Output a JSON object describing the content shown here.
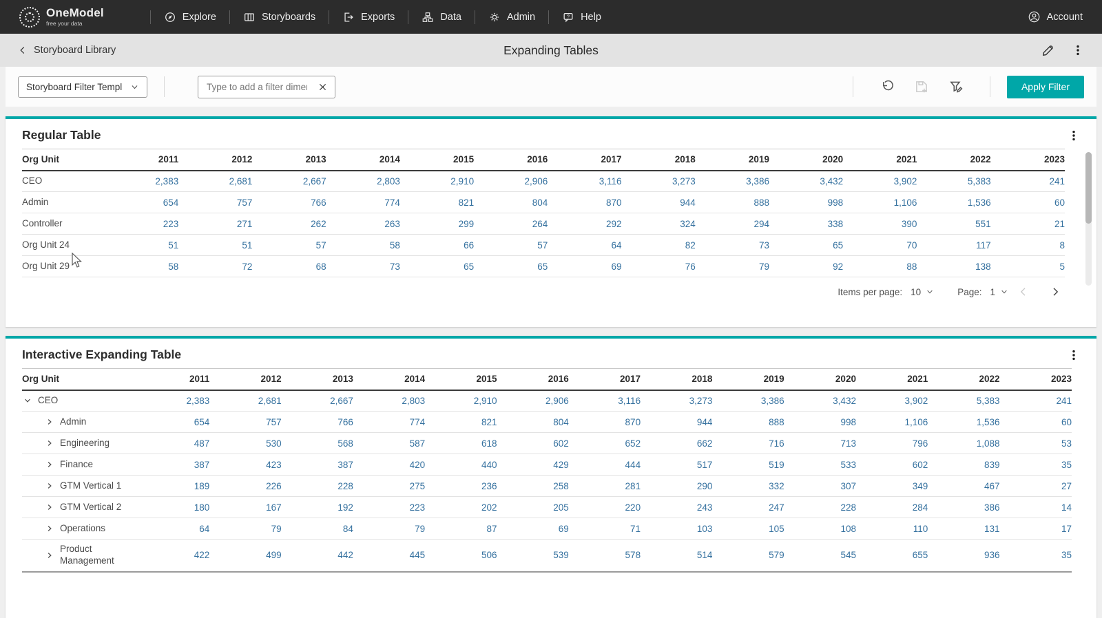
{
  "nav": {
    "brand": {
      "name": "OneModel",
      "tagline": "free your data"
    },
    "items": [
      {
        "label": "Explore"
      },
      {
        "label": "Storyboards"
      },
      {
        "label": "Exports"
      },
      {
        "label": "Data"
      },
      {
        "label": "Admin"
      },
      {
        "label": "Help"
      }
    ],
    "account_label": "Account"
  },
  "header": {
    "back_label": "Storyboard Library",
    "title": "Expanding Tables"
  },
  "filter_bar": {
    "template_dropdown_value": "Storyboard Filter Templ",
    "dimension_input_placeholder": "Type to add a filter dimens",
    "apply_button_label": "Apply Filter"
  },
  "colors": {
    "accent_teal": "#00A7A8",
    "number_blue": "#35719F"
  },
  "years": [
    "2011",
    "2012",
    "2013",
    "2014",
    "2015",
    "2016",
    "2017",
    "2018",
    "2019",
    "2020",
    "2021",
    "2022",
    "2023"
  ],
  "regular_table": {
    "title": "Regular Table",
    "first_column_header": "Org Unit",
    "rows": [
      {
        "label": "CEO",
        "values": [
          "2,383",
          "2,681",
          "2,667",
          "2,803",
          "2,910",
          "2,906",
          "3,116",
          "3,273",
          "3,386",
          "3,432",
          "3,902",
          "5,383",
          "241"
        ]
      },
      {
        "label": "Admin",
        "values": [
          "654",
          "757",
          "766",
          "774",
          "821",
          "804",
          "870",
          "944",
          "888",
          "998",
          "1,106",
          "1,536",
          "60"
        ]
      },
      {
        "label": "Controller",
        "values": [
          "223",
          "271",
          "262",
          "263",
          "299",
          "264",
          "292",
          "324",
          "294",
          "338",
          "390",
          "551",
          "21"
        ]
      },
      {
        "label": "Org Unit 24",
        "values": [
          "51",
          "51",
          "57",
          "58",
          "66",
          "57",
          "64",
          "82",
          "73",
          "65",
          "70",
          "117",
          "8"
        ]
      },
      {
        "label": "Org Unit 29",
        "values": [
          "58",
          "72",
          "68",
          "73",
          "65",
          "65",
          "69",
          "76",
          "79",
          "92",
          "88",
          "138",
          "5"
        ]
      }
    ],
    "pagination": {
      "items_per_page_label": "Items per page:",
      "items_per_page_value": "10",
      "page_label": "Page:",
      "page_value": "1"
    }
  },
  "expanding_table": {
    "title": "Interactive Expanding Table",
    "first_column_header": "Org Unit",
    "rows": [
      {
        "label": "CEO",
        "level": 0,
        "state": "expanded",
        "values": [
          "2,383",
          "2,681",
          "2,667",
          "2,803",
          "2,910",
          "2,906",
          "3,116",
          "3,273",
          "3,386",
          "3,432",
          "3,902",
          "5,383",
          "241"
        ]
      },
      {
        "label": "Admin",
        "level": 1,
        "state": "collapsed",
        "values": [
          "654",
          "757",
          "766",
          "774",
          "821",
          "804",
          "870",
          "944",
          "888",
          "998",
          "1,106",
          "1,536",
          "60"
        ]
      },
      {
        "label": "Engineering",
        "level": 1,
        "state": "collapsed",
        "values": [
          "487",
          "530",
          "568",
          "587",
          "618",
          "602",
          "652",
          "662",
          "716",
          "713",
          "796",
          "1,088",
          "53"
        ]
      },
      {
        "label": "Finance",
        "level": 1,
        "state": "collapsed",
        "values": [
          "387",
          "423",
          "387",
          "420",
          "440",
          "429",
          "444",
          "517",
          "519",
          "533",
          "602",
          "839",
          "35"
        ]
      },
      {
        "label": "GTM Vertical 1",
        "level": 1,
        "state": "collapsed",
        "values": [
          "189",
          "226",
          "228",
          "275",
          "236",
          "258",
          "281",
          "290",
          "332",
          "307",
          "349",
          "467",
          "27"
        ]
      },
      {
        "label": "GTM Vertical 2",
        "level": 1,
        "state": "collapsed",
        "values": [
          "180",
          "167",
          "192",
          "223",
          "202",
          "205",
          "220",
          "243",
          "247",
          "228",
          "284",
          "386",
          "14"
        ]
      },
      {
        "label": "Operations",
        "level": 1,
        "state": "collapsed",
        "values": [
          "64",
          "79",
          "84",
          "79",
          "87",
          "69",
          "71",
          "103",
          "105",
          "108",
          "110",
          "131",
          "17"
        ]
      },
      {
        "label": "Product Management",
        "level": 1,
        "state": "collapsed",
        "values": [
          "422",
          "499",
          "442",
          "445",
          "506",
          "539",
          "578",
          "514",
          "579",
          "545",
          "655",
          "936",
          "35"
        ]
      }
    ]
  }
}
